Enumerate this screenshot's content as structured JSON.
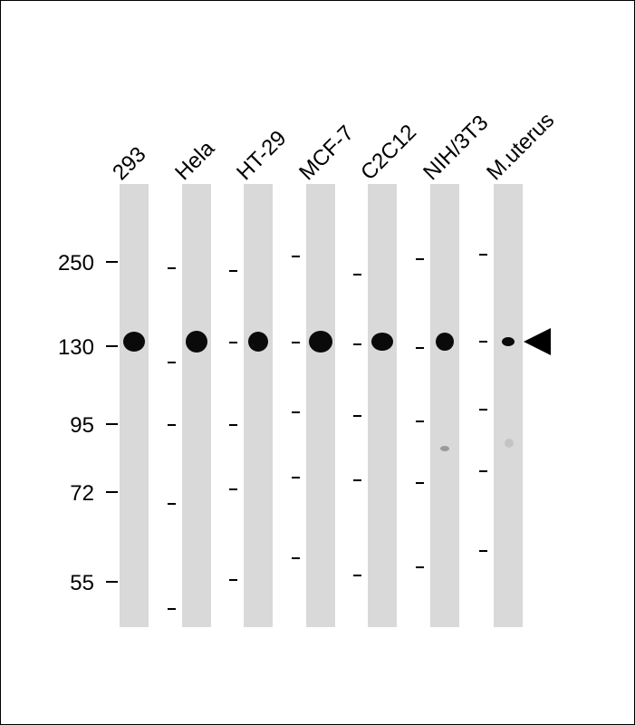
{
  "lanes": [
    {
      "label": "293"
    },
    {
      "label": "Hela"
    },
    {
      "label": "HT-29"
    },
    {
      "label": "MCF-7"
    },
    {
      "label": "C2C12"
    },
    {
      "label": "NIH/3T3"
    },
    {
      "label": "M.uterus"
    }
  ],
  "markers": [
    {
      "label": "250"
    },
    {
      "label": "130"
    },
    {
      "label": "95"
    },
    {
      "label": "72"
    },
    {
      "label": "55"
    }
  ]
}
